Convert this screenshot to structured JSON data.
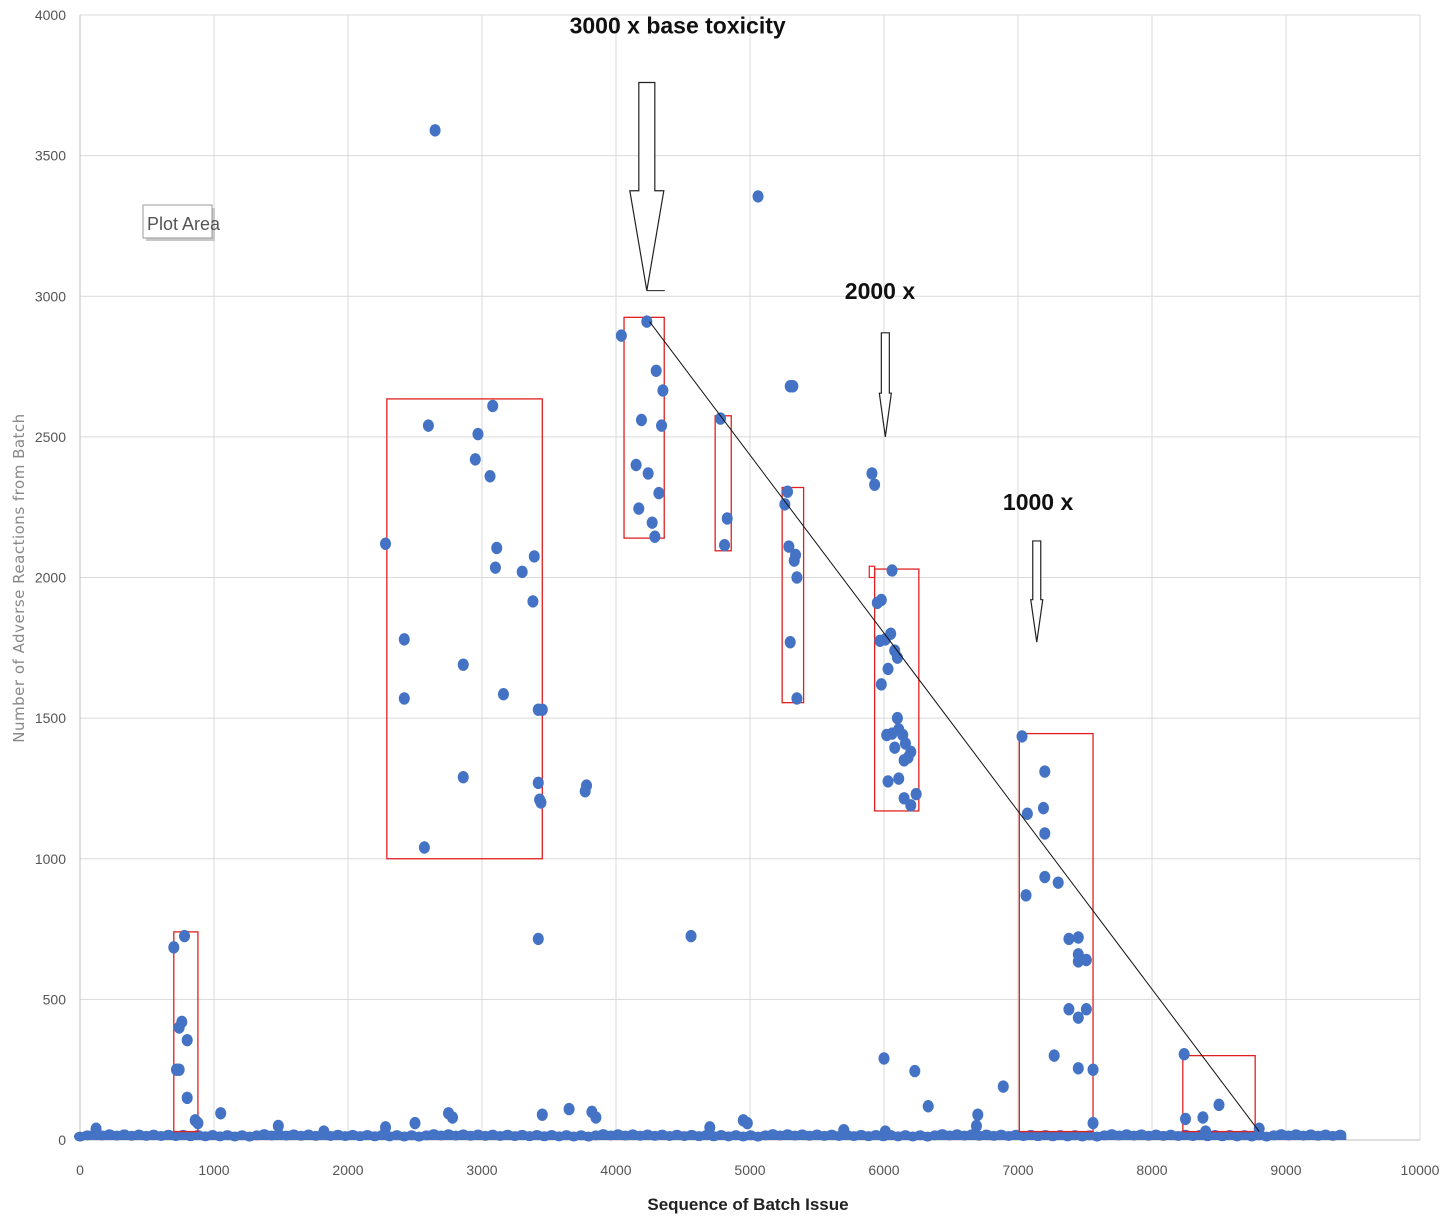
{
  "chart_data": {
    "type": "scatter",
    "title": "",
    "xlabel": "Sequence of Batch Issue",
    "ylabel": "Number of Adverse Reactions from Batch",
    "xlim": [
      0,
      10000
    ],
    "ylim": [
      0,
      4000
    ],
    "x_ticks": [
      "0",
      "1000",
      "2000",
      "3000",
      "4000",
      "5000",
      "6000",
      "7000",
      "8000",
      "9000",
      "10000"
    ],
    "y_ticks": [
      "0",
      "500",
      "1000",
      "1500",
      "2000",
      "2500",
      "3000",
      "3500",
      "4000"
    ],
    "grid": true,
    "legend": "none",
    "plot_area_label": "Plot Area",
    "colors": {
      "points": "#4472c4",
      "boxes": "#e02020",
      "trend": "#111111",
      "grid": "#d9d9d9"
    },
    "baseline_band": {
      "x_range": [
        0,
        9450
      ],
      "y_range": [
        0,
        50
      ],
      "note_visible": false
    },
    "points": [
      [
        2650,
        3590
      ],
      [
        5060,
        3355
      ],
      [
        4230,
        2910
      ],
      [
        4040,
        2860
      ],
      [
        4300,
        2735
      ],
      [
        4350,
        2665
      ],
      [
        4190,
        2560
      ],
      [
        4340,
        2540
      ],
      [
        4150,
        2400
      ],
      [
        4240,
        2370
      ],
      [
        4320,
        2300
      ],
      [
        4170,
        2245
      ],
      [
        4270,
        2195
      ],
      [
        4290,
        2145
      ],
      [
        4780,
        2565
      ],
      [
        4830,
        2210
      ],
      [
        4810,
        2115
      ],
      [
        5300,
        2680
      ],
      [
        5320,
        2680
      ],
      [
        5280,
        2305
      ],
      [
        5260,
        2260
      ],
      [
        5290,
        2110
      ],
      [
        5340,
        2080
      ],
      [
        5330,
        2060
      ],
      [
        5350,
        2000
      ],
      [
        5300,
        1770
      ],
      [
        5350,
        1570
      ],
      [
        5910,
        2370
      ],
      [
        5930,
        2330
      ],
      [
        6060,
        2025
      ],
      [
        5950,
        1910
      ],
      [
        5980,
        1920
      ],
      [
        6050,
        1800
      ],
      [
        5970,
        1775
      ],
      [
        6010,
        1780
      ],
      [
        6080,
        1740
      ],
      [
        6100,
        1715
      ],
      [
        6030,
        1675
      ],
      [
        5980,
        1620
      ],
      [
        6100,
        1500
      ],
      [
        6110,
        1460
      ],
      [
        6020,
        1440
      ],
      [
        6060,
        1445
      ],
      [
        6140,
        1440
      ],
      [
        6160,
        1410
      ],
      [
        6080,
        1395
      ],
      [
        6200,
        1380
      ],
      [
        6180,
        1360
      ],
      [
        6150,
        1350
      ],
      [
        6030,
        1275
      ],
      [
        6110,
        1285
      ],
      [
        6150,
        1215
      ],
      [
        6200,
        1190
      ],
      [
        6240,
        1230
      ],
      [
        6000,
        290
      ],
      [
        6230,
        245
      ],
      [
        6330,
        120
      ],
      [
        2280,
        2120
      ],
      [
        2600,
        2540
      ],
      [
        2970,
        2510
      ],
      [
        3080,
        2610
      ],
      [
        2950,
        2420
      ],
      [
        3060,
        2360
      ],
      [
        3110,
        2105
      ],
      [
        3100,
        2035
      ],
      [
        3300,
        2020
      ],
      [
        3390,
        2075
      ],
      [
        3380,
        1915
      ],
      [
        2420,
        1780
      ],
      [
        2860,
        1690
      ],
      [
        2420,
        1570
      ],
      [
        3160,
        1585
      ],
      [
        3420,
        1530
      ],
      [
        3450,
        1530
      ],
      [
        3420,
        1270
      ],
      [
        3430,
        1210
      ],
      [
        3440,
        1200
      ],
      [
        2860,
        1290
      ],
      [
        2570,
        1040
      ],
      [
        3420,
        715
      ],
      [
        3780,
        1260
      ],
      [
        3770,
        1240
      ],
      [
        4560,
        725
      ],
      [
        7030,
        1435
      ],
      [
        7200,
        1310
      ],
      [
        7070,
        1160
      ],
      [
        7190,
        1180
      ],
      [
        7200,
        1090
      ],
      [
        7060,
        870
      ],
      [
        7200,
        935
      ],
      [
        7300,
        915
      ],
      [
        7380,
        715
      ],
      [
        7450,
        720
      ],
      [
        7450,
        660
      ],
      [
        7450,
        635
      ],
      [
        7510,
        640
      ],
      [
        7380,
        465
      ],
      [
        7450,
        435
      ],
      [
        7510,
        465
      ],
      [
        7270,
        300
      ],
      [
        7450,
        255
      ],
      [
        7560,
        250
      ],
      [
        7560,
        60
      ],
      [
        6890,
        190
      ],
      [
        8240,
        305
      ],
      [
        8250,
        75
      ],
      [
        8380,
        80
      ],
      [
        8500,
        125
      ],
      [
        8800,
        40
      ],
      [
        8400,
        30
      ],
      [
        700,
        685
      ],
      [
        780,
        725
      ],
      [
        740,
        400
      ],
      [
        760,
        420
      ],
      [
        800,
        355
      ],
      [
        720,
        250
      ],
      [
        740,
        250
      ],
      [
        800,
        150
      ],
      [
        860,
        70
      ],
      [
        880,
        60
      ],
      [
        1050,
        95
      ],
      [
        1480,
        50
      ],
      [
        2750,
        95
      ],
      [
        2780,
        80
      ],
      [
        3450,
        90
      ],
      [
        3650,
        110
      ],
      [
        3820,
        100
      ],
      [
        3850,
        80
      ],
      [
        4950,
        70
      ],
      [
        4980,
        60
      ],
      [
        6700,
        90
      ],
      [
        6690,
        50
      ],
      [
        2500,
        60
      ],
      [
        2280,
        45
      ],
      [
        120,
        40
      ],
      [
        1820,
        30
      ],
      [
        4700,
        45
      ],
      [
        5700,
        35
      ],
      [
        6010,
        30
      ]
    ],
    "boxes": [
      {
        "x": [
          700,
          880
        ],
        "y": [
          30,
          740
        ]
      },
      {
        "x": [
          2290,
          3450
        ],
        "y": [
          1000,
          2635
        ]
      },
      {
        "x": [
          4060,
          4360
        ],
        "y": [
          2140,
          2925
        ]
      },
      {
        "x": [
          4740,
          4860
        ],
        "y": [
          2095,
          2575
        ]
      },
      {
        "x": [
          5240,
          5400
        ],
        "y": [
          1555,
          2320
        ]
      },
      {
        "x": [
          5930,
          6260
        ],
        "y": [
          1170,
          2030
        ]
      },
      {
        "x": [
          7010,
          7560
        ],
        "y": [
          30,
          1445
        ]
      },
      {
        "x": [
          8230,
          8770
        ],
        "y": [
          30,
          300
        ]
      }
    ],
    "small_box": {
      "x": [
        5890,
        5930
      ],
      "y": [
        2000,
        2040
      ]
    },
    "trend_line": {
      "from": [
        4250,
        2910
      ],
      "to": [
        8800,
        30
      ]
    },
    "annotations": [
      {
        "text": "3000 x base toxicity",
        "arrow_x": 4230,
        "arrow_from_y": 3760,
        "arrow_to_y": 3020,
        "text_x": 4460,
        "text_y": 3935
      },
      {
        "text": "2000 x",
        "arrow_x": 6010,
        "arrow_from_y": 2870,
        "arrow_to_y": 2500,
        "text_x": 5970,
        "text_y": 2990
      },
      {
        "text": "1000 x",
        "arrow_x": 7140,
        "arrow_from_y": 2130,
        "arrow_to_y": 1770,
        "text_x": 7150,
        "text_y": 2240
      }
    ]
  }
}
